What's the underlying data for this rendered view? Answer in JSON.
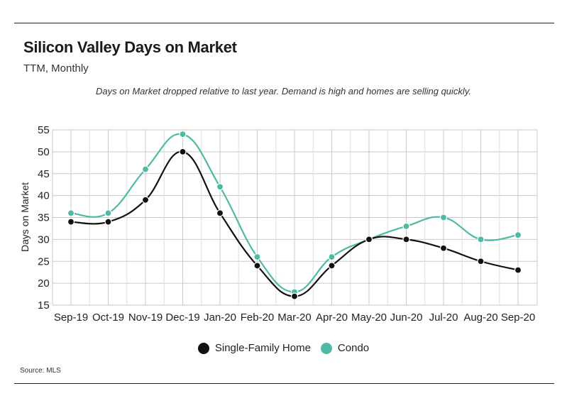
{
  "header": {
    "title": "Silicon Valley Days on Market",
    "subtitle": "TTM, Monthly",
    "note": "Days on Market dropped relative to last year. Demand is high and homes are selling quickly."
  },
  "footer": {
    "source": "Source:  MLS"
  },
  "colors": {
    "single_family": "#111111",
    "condo": "#4dbaa6",
    "grid": "#c9c9c9"
  },
  "chart_data": {
    "type": "line",
    "title": "Silicon Valley Days on Market",
    "subtitle": "TTM, Monthly",
    "xlabel": "",
    "ylabel": "Days on Market",
    "ylim": [
      15,
      55
    ],
    "yticks": [
      55,
      50,
      45,
      40,
      35,
      30,
      25,
      20,
      15
    ],
    "grid": true,
    "legend_position": "bottom",
    "categories": [
      "Sep-19",
      "Oct-19",
      "Nov-19",
      "Dec-19",
      "Jan-20",
      "Feb-20",
      "Mar-20",
      "Apr-20",
      "May-20",
      "Jun-20",
      "Jul-20",
      "Aug-20",
      "Sep-20"
    ],
    "series": [
      {
        "name": "Single-Family Home",
        "color": "#111111",
        "values": [
          34,
          34,
          39,
          50,
          36,
          24,
          17,
          24,
          30,
          30,
          28,
          25,
          23
        ]
      },
      {
        "name": "Condo",
        "color": "#4dbaa6",
        "values": [
          36,
          36,
          46,
          54,
          42,
          26,
          18,
          26,
          30,
          33,
          35,
          30,
          31
        ]
      }
    ]
  }
}
